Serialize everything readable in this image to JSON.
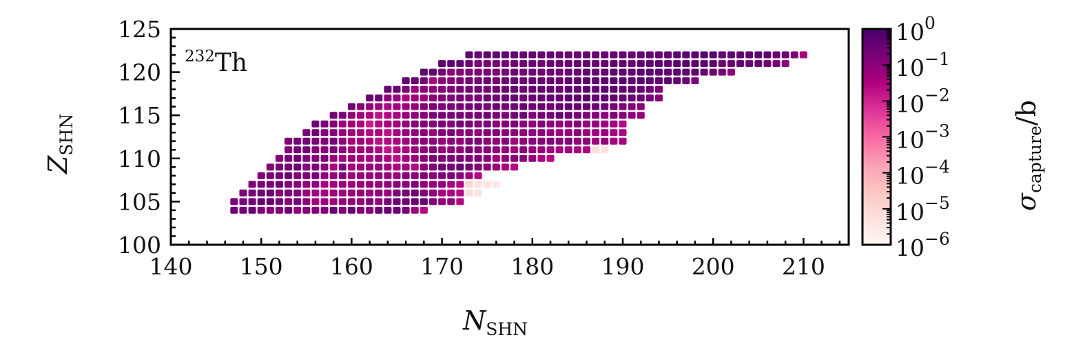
{
  "chart_data": {
    "type": "heatmap",
    "title": "",
    "annotation": {
      "superscript": "232",
      "text": "Th"
    },
    "xlabel": {
      "main": "N",
      "sub": "SHN"
    },
    "ylabel": {
      "main": "Z",
      "sub": "SHN"
    },
    "colorbar_label": {
      "main": "σ",
      "sub": "capture",
      "suffix": "/b"
    },
    "xlim": [
      140,
      215
    ],
    "ylim": [
      100,
      125
    ],
    "x_ticks": [
      "140",
      "150",
      "160",
      "170",
      "180",
      "190",
      "200",
      "210"
    ],
    "y_ticks": [
      "100",
      "105",
      "110",
      "115",
      "120",
      "125"
    ],
    "colorbar": {
      "scale": "log10",
      "range": [
        -6,
        0
      ],
      "tick_base": "10",
      "tick_exponents": [
        "0",
        "−1",
        "−2",
        "−3",
        "−4",
        "−5",
        "−6"
      ],
      "colors": [
        "#fff7f3",
        "#fde0dd",
        "#fcc5c0",
        "#fa9fb5",
        "#f768a1",
        "#dd3497",
        "#ae017e",
        "#7a0177",
        "#49006a"
      ]
    },
    "rows": [
      {
        "Z": 104,
        "N_start": 147,
        "log_sigma": [
          -0.6,
          -0.6,
          -0.4,
          -0.9,
          -0.9,
          -0.9,
          -0.6,
          -1.2,
          -0.9,
          -0.9,
          -0.9,
          -0.5,
          -0.9,
          -0.5,
          -0.9,
          -0.9,
          -0.5,
          -0.5,
          -0.5,
          -0.7,
          -1.3,
          -1.6
        ]
      },
      {
        "Z": 105,
        "N_start": 147,
        "log_sigma": [
          -0.7,
          -0.7,
          -0.6,
          -0.5,
          -0.4,
          -0.6,
          -0.9,
          -0.7,
          -0.9,
          -1.3,
          -1.2,
          -1.2,
          -1.1,
          -1.1,
          -1.1,
          -0.8,
          -1.1,
          -0.7,
          -0.5,
          -0.6,
          -0.5,
          -0.4,
          -0.9,
          -1.1,
          -1.1,
          -1.6
        ]
      },
      {
        "Z": 106,
        "N_start": 148,
        "log_sigma": [
          -0.8,
          -0.7,
          -0.6,
          -0.5,
          -0.9,
          -0.8,
          -0.9,
          -1.2,
          -1.3,
          -1.3,
          -1.2,
          -1.3,
          -1.2,
          -1.2,
          -1.3,
          -1.1,
          -1.2,
          -0.8,
          -0.7,
          -0.6,
          -0.8,
          -1.1,
          -1.4,
          -1.5,
          -1.6,
          -5.2,
          -5.3
        ]
      },
      {
        "Z": 107,
        "N_start": 149,
        "log_sigma": [
          -0.8,
          -0.8,
          -0.7,
          -0.6,
          -0.8,
          -1.0,
          -1.1,
          -1.0,
          -1.3,
          -1.3,
          -1.2,
          -1.3,
          -1.2,
          -1.2,
          -1.1,
          -1.1,
          -1.0,
          -1.0,
          -0.8,
          -1.0,
          -1.2,
          -1.1,
          -1.4,
          -1.6,
          -5.0,
          -5.3,
          -5.3,
          -5.5
        ]
      },
      {
        "Z": 108,
        "N_start": 150,
        "log_sigma": [
          -0.8,
          -0.7,
          -0.7,
          -0.5,
          -0.9,
          -0.8,
          -0.7,
          -1.0,
          -1.2,
          -0.9,
          -1.3,
          -1.1,
          -1.2,
          -1.2,
          -1.1,
          -1.2,
          -0.9,
          -1.0,
          -0.8,
          -1.0,
          -0.8,
          -0.7,
          -1.0,
          -1.3,
          -1.6
        ]
      },
      {
        "Z": 109,
        "N_start": 151,
        "log_sigma": [
          -0.9,
          -0.8,
          -0.7,
          -0.6,
          -0.9,
          -0.8,
          -0.9,
          -1.5,
          -0.8,
          -1.4,
          -1.3,
          -1.2,
          -1.3,
          -1.3,
          -1.5,
          -1.4,
          -1.6,
          -1.0,
          -0.8,
          -0.6,
          -0.7,
          -0.5,
          -0.7,
          -0.9,
          -1.0,
          -1.2,
          -1.5,
          -1.6
        ]
      },
      {
        "Z": 110,
        "N_start": 152,
        "log_sigma": [
          -0.9,
          -0.8,
          -0.6,
          -0.8,
          -0.9,
          -0.7,
          -1.2,
          -1.3,
          -1.2,
          -1.4,
          -1.4,
          -1.3,
          -1.5,
          -1.7,
          -1.4,
          -1.2,
          -0.9,
          -0.8,
          -0.8,
          -0.7,
          -0.8,
          -0.9,
          -0.8,
          -1.0,
          -1.3,
          -1.1,
          -0.9,
          -1.0,
          -1.1,
          -1.5,
          -1.6
        ]
      },
      {
        "Z": 111,
        "N_start": 153,
        "log_sigma": [
          -0.9,
          -0.7,
          -0.6,
          -0.9,
          -1.0,
          -0.8,
          -1.0,
          -1.4,
          -1.3,
          -1.2,
          -1.6,
          -1.8,
          -1.6,
          -1.5,
          -1.2,
          -1.0,
          -0.9,
          -1.2,
          -1.0,
          -1.1,
          -0.8,
          -1.0,
          -0.9,
          -1.0,
          -1.1,
          -1.3,
          -1.0,
          -1.1,
          -1.2,
          -1.3,
          -1.4,
          -1.3,
          -1.5,
          -1.5,
          -5.2,
          -5.3
        ]
      },
      {
        "Z": 112,
        "N_start": 153,
        "log_sigma": [
          -0.8,
          -0.7,
          -0.6,
          -0.8,
          -0.9,
          -0.7,
          -1.1,
          -1.4,
          -1.3,
          -1.5,
          -1.7,
          -1.6,
          -1.5,
          -1.3,
          -1.1,
          -1.0,
          -1.1,
          -1.2,
          -1.0,
          -1.1,
          -0.9,
          -0.8,
          -1.0,
          -1.1,
          -1.0,
          -1.2,
          -1.1,
          -1.0,
          -0.9,
          -0.8,
          -1.0,
          -0.9,
          -1.1,
          -1.0,
          -1.2,
          -1.1,
          -1.4,
          -1.4
        ]
      },
      {
        "Z": 113,
        "N_start": 155,
        "log_sigma": [
          -0.7,
          -0.6,
          -0.8,
          -0.9,
          -1.2,
          -1.3,
          -1.4,
          -1.6,
          -1.5,
          -1.7,
          -1.4,
          -1.2,
          -1.1,
          -1.0,
          -1.2,
          -0.9,
          -0.8,
          -1.0,
          -0.9,
          -1.1,
          -0.9,
          -0.8,
          -1.0,
          -0.9,
          -1.1,
          -1.0,
          -1.0,
          -1.1,
          -1.2,
          -1.1,
          -1.0,
          -1.2,
          -1.3,
          -1.2,
          -1.4,
          -1.5
        ]
      },
      {
        "Z": 114,
        "N_start": 156,
        "log_sigma": [
          -0.6,
          -0.7,
          -0.9,
          -1.2,
          -1.3,
          -1.5,
          -1.9,
          -1.6,
          -1.4,
          -1.3,
          -1.1,
          -0.9,
          -0.8,
          -0.9,
          -0.8,
          -0.9,
          -0.7,
          -0.8,
          -0.9,
          -0.8,
          -1.0,
          -0.9,
          -0.8,
          -1.0,
          -1.1,
          -0.9,
          -1.0,
          -1.1,
          -1.0,
          -0.9,
          -1.2,
          -1.1,
          -1.3,
          -1.4,
          -1.6
        ]
      },
      {
        "Z": 115,
        "N_start": 158,
        "log_sigma": [
          -0.6,
          -0.8,
          -1.1,
          -1.3,
          -1.5,
          -1.7,
          -1.6,
          -1.4,
          -1.2,
          -1.0,
          -0.9,
          -0.8,
          -0.7,
          -0.8,
          -0.7,
          -0.8,
          -0.7,
          -0.6,
          -0.7,
          -0.8,
          -0.7,
          -0.6,
          -0.8,
          -0.7,
          -0.6,
          -0.5,
          -0.6,
          -0.7,
          -0.8,
          -0.9,
          -1.0,
          -0.8,
          -0.9,
          -1.0,
          -1.1
        ]
      },
      {
        "Z": 116,
        "N_start": 160,
        "log_sigma": [
          -0.6,
          -0.9,
          -1.2,
          -1.3,
          -1.6,
          -1.4,
          -1.3,
          -1.1,
          -0.9,
          -0.8,
          -0.8,
          -0.7,
          -0.8,
          -0.7,
          -0.6,
          -0.7,
          -0.6,
          -0.7,
          -0.6,
          -0.5,
          -0.6,
          -0.5,
          -0.6,
          -0.5,
          -0.4,
          -0.5,
          -0.4,
          -0.5,
          -0.6,
          -0.7,
          -0.8,
          -0.8,
          -1.0
        ]
      },
      {
        "Z": 117,
        "N_start": 162,
        "log_sigma": [
          -0.5,
          -0.6,
          -1.1,
          -1.2,
          -1.5,
          -1.3,
          -1.2,
          -1.0,
          -0.9,
          -0.8,
          -0.7,
          -0.8,
          -0.7,
          -0.6,
          -0.7,
          -0.6,
          -0.5,
          -0.6,
          -0.5,
          -0.5,
          -0.4,
          -0.5,
          -0.4,
          -0.4,
          -0.3,
          -0.4,
          -0.3,
          -0.4,
          -0.5,
          -0.5,
          -0.6,
          -0.7,
          -0.9
        ]
      },
      {
        "Z": 118,
        "N_start": 164,
        "log_sigma": [
          -0.5,
          -0.5,
          -0.8,
          -1.3,
          -1.0,
          -1.1,
          -0.9,
          -0.8,
          -0.7,
          -0.7,
          -0.6,
          -0.7,
          -0.6,
          -0.6,
          -0.5,
          -0.6,
          -0.5,
          -0.5,
          -0.4,
          -0.5,
          -0.4,
          -0.4,
          -0.3,
          -0.4,
          -0.3,
          -0.3,
          -0.4,
          -0.4,
          -0.5,
          -0.6,
          -0.8
        ]
      },
      {
        "Z": 119,
        "N_start": 166,
        "log_sigma": [
          -0.4,
          -0.5,
          -0.7,
          -1.4,
          -1.0,
          -0.9,
          -0.8,
          -0.7,
          -0.7,
          -0.6,
          -0.7,
          -0.6,
          -0.5,
          -0.6,
          -0.5,
          -0.5,
          -0.4,
          -0.5,
          -0.4,
          -0.4,
          -0.3,
          -0.4,
          -0.3,
          -0.3,
          -0.3,
          -0.4,
          -0.3,
          -0.3,
          -0.4,
          -0.3,
          -0.4,
          -0.5,
          -0.8
        ]
      },
      {
        "Z": 120,
        "N_start": 168,
        "log_sigma": [
          -0.4,
          -0.4,
          -0.7,
          -1.0,
          -0.9,
          -0.9,
          -0.8,
          -0.7,
          -0.8,
          -0.7,
          -0.6,
          -0.7,
          -0.6,
          -0.6,
          -0.5,
          -0.6,
          -0.5,
          -0.5,
          -0.4,
          -0.5,
          -0.4,
          -0.4,
          -0.3,
          -0.4,
          -0.3,
          -0.3,
          -0.3,
          -0.4,
          -0.3,
          -0.4,
          -0.4,
          -0.5,
          -0.6,
          -0.7,
          -1.1
        ]
      },
      {
        "Z": 121,
        "N_start": 170,
        "log_sigma": [
          -0.3,
          -0.3,
          -0.4,
          -0.5,
          -0.7,
          -0.7,
          -0.6,
          -0.7,
          -0.6,
          -0.6,
          -0.5,
          -0.6,
          -0.5,
          -0.5,
          -0.5,
          -0.5,
          -0.4,
          -0.5,
          -0.4,
          -0.4,
          -0.4,
          -0.5,
          -0.4,
          -0.4,
          -0.3,
          -0.4,
          -0.3,
          -0.3,
          -0.4,
          -0.3,
          -0.4,
          -0.5,
          -0.5,
          -0.4,
          -0.5,
          -0.5,
          -0.6,
          -0.7,
          -1.0
        ]
      },
      {
        "Z": 122,
        "N_start": 173,
        "log_sigma": [
          -0.4,
          -0.4,
          -0.4,
          -0.4,
          -0.4,
          -0.4,
          -0.5,
          -0.4,
          -0.4,
          -0.4,
          -0.5,
          -0.5,
          -0.5,
          -0.5,
          -0.4,
          -0.5,
          -0.5,
          -0.4,
          -0.5,
          -0.4,
          -0.4,
          -0.4,
          -0.4,
          -0.3,
          -0.3,
          -0.4,
          -0.3,
          -0.3,
          -0.4,
          -0.4,
          -0.4,
          -0.3,
          -0.3,
          -0.3,
          -0.5,
          -0.6,
          -0.8,
          -1.4
        ]
      }
    ]
  }
}
